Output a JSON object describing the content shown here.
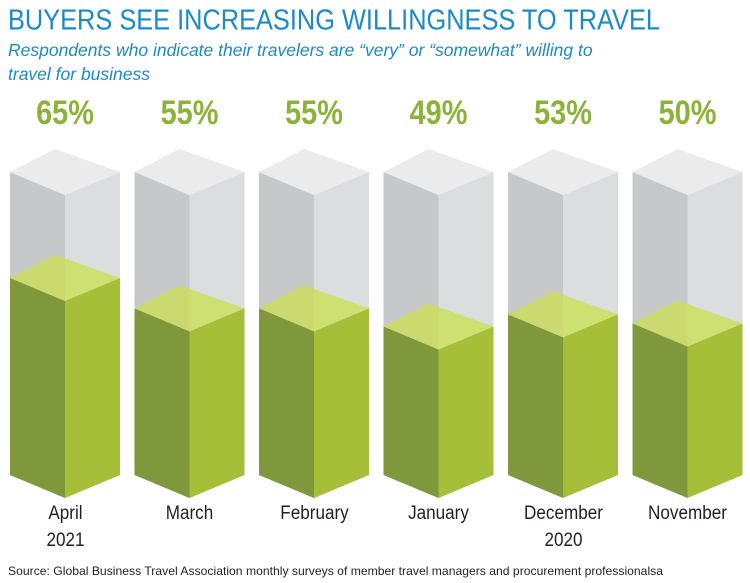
{
  "chart_data": {
    "type": "bar",
    "title": "BUYERS SEE INCREASING WILLINGNESS TO TRAVEL",
    "subtitle": "Respondents who indicate their travelers are “very” or “somewhat” willing to travel for business",
    "categories": [
      "April\n2021",
      "March",
      "February",
      "January",
      "December\n2020",
      "November"
    ],
    "values": [
      65,
      55,
      55,
      49,
      53,
      50
    ],
    "value_labels": [
      "65%",
      "55%",
      "55%",
      "49%",
      "53%",
      "50%"
    ],
    "ylim": [
      0,
      100
    ],
    "color": "#a5bf38",
    "source": "Source: Global Business Travel Association monthly surveys of member travel managers and procurement professionalsa"
  }
}
